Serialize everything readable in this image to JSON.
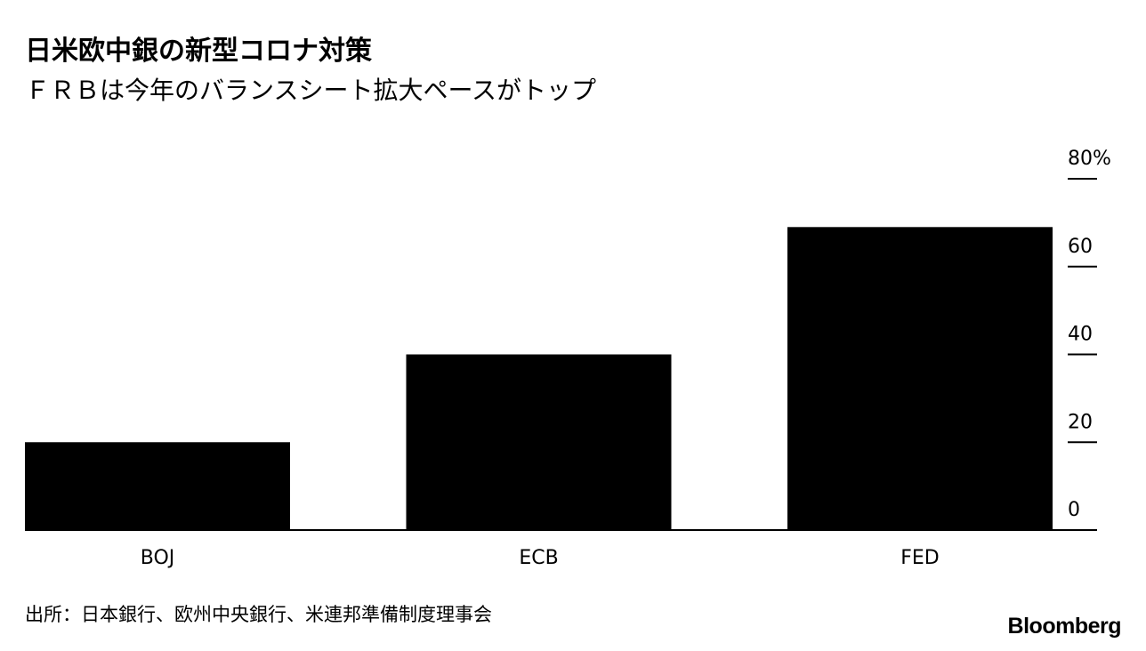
{
  "header": {
    "title": "日米欧中銀の新型コロナ対策",
    "subtitle": "ＦＲＢは今年のバランスシート拡大ペースがトップ"
  },
  "chart_data": {
    "type": "bar",
    "categories": [
      "BOJ",
      "ECB",
      "FED"
    ],
    "values": [
      20,
      40,
      69
    ],
    "ylim": [
      0,
      80
    ],
    "yticks": [
      0,
      20,
      40,
      60,
      80
    ],
    "ytick_labels": [
      "0",
      "20",
      "40",
      "60",
      "80%"
    ],
    "axis_position": "right",
    "grid": false,
    "bar_color": "#000000"
  },
  "footer": {
    "source": "出所：日本銀行、欧州中央銀行、米連邦準備制度理事会",
    "brand": "Bloomberg"
  }
}
